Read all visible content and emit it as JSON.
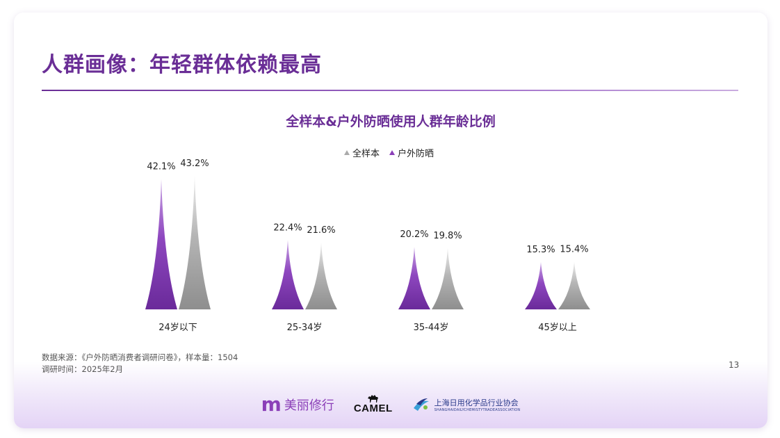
{
  "header": {
    "title": "人群画像：年轻群体依赖最高"
  },
  "chart_data": {
    "type": "bar",
    "title": "全样本&户外防晒使用人群年龄比例",
    "legend": {
      "placement": "top-center",
      "items": [
        "全样本",
        "户外防晒"
      ]
    },
    "categories": [
      "24岁以下",
      "25-34岁",
      "35-44岁",
      "45岁以上"
    ],
    "series": [
      {
        "name": "户外防晒",
        "color": "#7d36ac",
        "values": [
          42.1,
          22.4,
          20.2,
          15.3
        ],
        "labels": [
          "42.1%",
          "22.4%",
          "20.2%",
          "15.3%"
        ]
      },
      {
        "name": "全样本",
        "color": "#9a9a9a",
        "values": [
          43.2,
          21.6,
          19.8,
          15.4
        ],
        "labels": [
          "43.2%",
          "21.6%",
          "19.8%",
          "15.4%"
        ]
      }
    ],
    "ylim": [
      0,
      45
    ],
    "grid": false
  },
  "footer": {
    "source": "数据来源：《户外防晒消费者调研问卷》，样本量：1504",
    "date": "调研时间：2025年2月",
    "page_number": "13",
    "logos": {
      "meili_mark": "m",
      "meili_text": "美丽修行",
      "camel_text": "CAMEL",
      "assoc_cn": "上海日用化学品行业协会",
      "assoc_en": "SHANGHAIDAILYCHEMISTYTRADEASSOCIATION"
    }
  }
}
